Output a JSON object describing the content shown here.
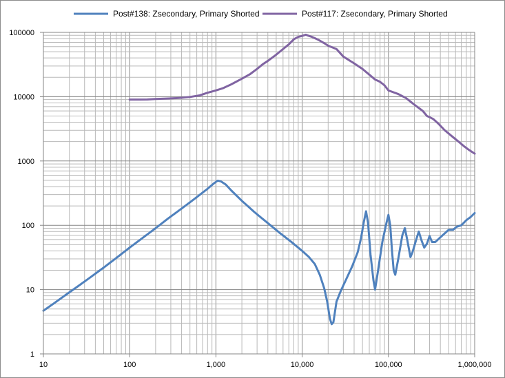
{
  "chart_data": {
    "type": "line",
    "x_scale": "log",
    "y_scale": "log",
    "xlim": [
      10,
      1000000
    ],
    "ylim": [
      1,
      100000
    ],
    "grid": true,
    "legend_position": "top",
    "x_ticks": [
      "10",
      "100",
      "1,000",
      "10,000",
      "100,000",
      "1,000,000"
    ],
    "y_ticks": [
      "1",
      "10",
      "100",
      "1000",
      "10000",
      "100000"
    ],
    "series": [
      {
        "name": "Post#138: Zsecondary, Primary Shorted",
        "color": "#4f81bd",
        "points": [
          [
            10,
            4.7
          ],
          [
            13,
            6
          ],
          [
            18,
            8.2
          ],
          [
            25,
            11.2
          ],
          [
            35,
            15.5
          ],
          [
            50,
            22
          ],
          [
            70,
            31
          ],
          [
            100,
            45
          ],
          [
            140,
            63
          ],
          [
            200,
            90
          ],
          [
            280,
            128
          ],
          [
            400,
            182
          ],
          [
            560,
            255
          ],
          [
            800,
            370
          ],
          [
            950,
            450
          ],
          [
            1050,
            495
          ],
          [
            1150,
            480
          ],
          [
            1300,
            430
          ],
          [
            1500,
            350
          ],
          [
            2000,
            240
          ],
          [
            2800,
            160
          ],
          [
            4000,
            108
          ],
          [
            5500,
            76
          ],
          [
            7500,
            55
          ],
          [
            10000,
            40
          ],
          [
            12000,
            32
          ],
          [
            14000,
            25
          ],
          [
            16000,
            17
          ],
          [
            18000,
            10.5
          ],
          [
            19500,
            6.5
          ],
          [
            21000,
            3.5
          ],
          [
            22000,
            2.9
          ],
          [
            23000,
            3.1
          ],
          [
            25000,
            6.5
          ],
          [
            28000,
            9.5
          ],
          [
            32000,
            14
          ],
          [
            38000,
            23
          ],
          [
            44000,
            38
          ],
          [
            48000,
            62
          ],
          [
            52000,
            115
          ],
          [
            55000,
            165
          ],
          [
            58000,
            110
          ],
          [
            62000,
            35
          ],
          [
            67000,
            14
          ],
          [
            70000,
            10
          ],
          [
            75000,
            18
          ],
          [
            85000,
            55
          ],
          [
            95000,
            110
          ],
          [
            100000,
            145
          ],
          [
            105000,
            100
          ],
          [
            110000,
            40
          ],
          [
            115000,
            20
          ],
          [
            120000,
            17
          ],
          [
            130000,
            30
          ],
          [
            145000,
            70
          ],
          [
            155000,
            90
          ],
          [
            165000,
            60
          ],
          [
            180000,
            32
          ],
          [
            190000,
            38
          ],
          [
            210000,
            60
          ],
          [
            225000,
            80
          ],
          [
            240000,
            60
          ],
          [
            260000,
            45
          ],
          [
            280000,
            52
          ],
          [
            300000,
            68
          ],
          [
            320000,
            55
          ],
          [
            350000,
            55
          ],
          [
            400000,
            65
          ],
          [
            450000,
            75
          ],
          [
            500000,
            85
          ],
          [
            560000,
            85
          ],
          [
            620000,
            95
          ],
          [
            700000,
            100
          ],
          [
            800000,
            120
          ],
          [
            900000,
            135
          ],
          [
            1000000,
            155
          ]
        ]
      },
      {
        "name": "Post#117: Zsecondary, Primary Shorted",
        "color": "#8064a2",
        "points": [
          [
            100,
            9000
          ],
          [
            130,
            9000
          ],
          [
            160,
            9050
          ],
          [
            200,
            9200
          ],
          [
            300,
            9400
          ],
          [
            400,
            9600
          ],
          [
            500,
            9900
          ],
          [
            650,
            10500
          ],
          [
            800,
            11500
          ],
          [
            1000,
            12500
          ],
          [
            1200,
            13500
          ],
          [
            1500,
            15500
          ],
          [
            2000,
            19000
          ],
          [
            2500,
            22500
          ],
          [
            3000,
            27000
          ],
          [
            3500,
            32000
          ],
          [
            4000,
            36000
          ],
          [
            5000,
            45000
          ],
          [
            6000,
            55000
          ],
          [
            7000,
            65000
          ],
          [
            8000,
            78000
          ],
          [
            9000,
            85000
          ],
          [
            10000,
            88000
          ],
          [
            11000,
            92000
          ],
          [
            12000,
            88000
          ],
          [
            13000,
            85000
          ],
          [
            15000,
            78000
          ],
          [
            18000,
            68000
          ],
          [
            20000,
            62000
          ],
          [
            25000,
            55000
          ],
          [
            30000,
            42000
          ],
          [
            40000,
            33000
          ],
          [
            50000,
            27000
          ],
          [
            60000,
            22000
          ],
          [
            70000,
            18500
          ],
          [
            80000,
            17000
          ],
          [
            90000,
            15000
          ],
          [
            100000,
            12500
          ],
          [
            130000,
            11000
          ],
          [
            160000,
            9500
          ],
          [
            200000,
            7500
          ],
          [
            250000,
            6000
          ],
          [
            280000,
            5000
          ],
          [
            300000,
            4800
          ],
          [
            330000,
            4500
          ],
          [
            380000,
            3800
          ],
          [
            450000,
            3000
          ],
          [
            550000,
            2400
          ],
          [
            650000,
            2000
          ],
          [
            750000,
            1700
          ],
          [
            850000,
            1500
          ],
          [
            1000000,
            1300
          ]
        ]
      }
    ]
  }
}
